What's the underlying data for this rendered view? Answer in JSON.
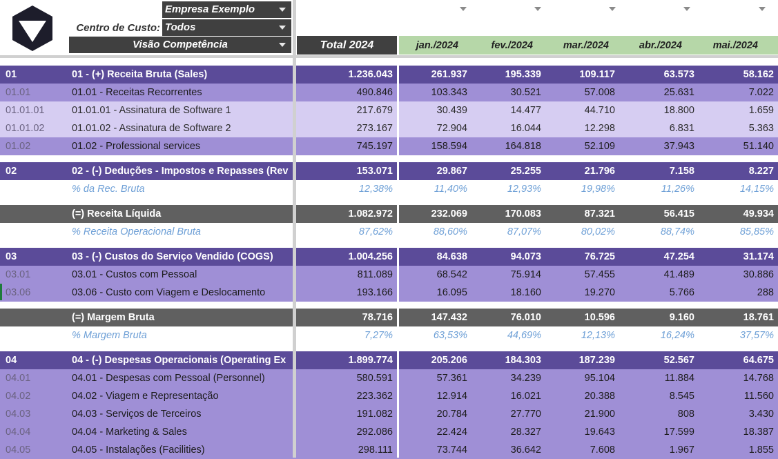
{
  "filters": {
    "empresa": "Empresa Exemplo",
    "centro_label": "Centro de Custo:",
    "centro_value": "Todos",
    "visao": "Visão Competência"
  },
  "header": {
    "total_label": "Total 2024",
    "months": [
      "jan./2024",
      "fev./2024",
      "mar./2024",
      "abr./2024",
      "mai./2024"
    ]
  },
  "rows": [
    {
      "type": "group",
      "code": "01",
      "desc": "01 - (+) Receita Bruta (Sales)",
      "total": "1.236.043",
      "months": [
        "261.937",
        "195.339",
        "109.117",
        "63.573",
        "58.162"
      ]
    },
    {
      "type": "sub",
      "code": "01.01",
      "desc": "01.01 - Receitas Recorrentes",
      "total": "490.846",
      "months": [
        "103.343",
        "30.521",
        "57.008",
        "25.631",
        "7.022"
      ]
    },
    {
      "type": "item",
      "code": "01.01.01",
      "desc": "01.01.01 - Assinatura de Software 1",
      "total": "217.679",
      "months": [
        "30.439",
        "14.477",
        "44.710",
        "18.800",
        "1.659"
      ]
    },
    {
      "type": "item",
      "code": "01.01.02",
      "desc": "01.01.02 - Assinatura de Software 2",
      "total": "273.167",
      "months": [
        "72.904",
        "16.044",
        "12.298",
        "6.831",
        "5.363"
      ]
    },
    {
      "type": "sub",
      "code": "01.02",
      "desc": "01.02 - Professional services",
      "total": "745.197",
      "months": [
        "158.594",
        "164.818",
        "52.109",
        "37.943",
        "51.140"
      ]
    },
    {
      "type": "group",
      "code": "02",
      "desc": "02 - (-) Deduções - Impostos e Repasses (Rev",
      "total": "153.071",
      "months": [
        "29.867",
        "25.255",
        "21.796",
        "7.158",
        "8.227"
      ]
    },
    {
      "type": "pct",
      "code": "",
      "desc": "% da Rec. Bruta",
      "total": "12,38%",
      "months": [
        "11,40%",
        "12,93%",
        "19,98%",
        "11,26%",
        "14,15%"
      ]
    },
    {
      "type": "result",
      "code": "",
      "desc": "(=) Receita Líquida",
      "total": "1.082.972",
      "months": [
        "232.069",
        "170.083",
        "87.321",
        "56.415",
        "49.934"
      ]
    },
    {
      "type": "pct",
      "code": "",
      "desc": "% Receita Operacional Bruta",
      "total": "87,62%",
      "months": [
        "88,60%",
        "87,07%",
        "80,02%",
        "88,74%",
        "85,85%"
      ]
    },
    {
      "type": "group",
      "code": "03",
      "desc": "03 - (-) Custos do Serviço Vendido (COGS)",
      "total": "1.004.256",
      "months": [
        "84.638",
        "94.073",
        "76.725",
        "47.254",
        "31.174"
      ]
    },
    {
      "type": "sub",
      "code": "03.01",
      "desc": "03.01 - Custos com Pessoal",
      "total": "811.089",
      "months": [
        "68.542",
        "75.914",
        "57.455",
        "41.489",
        "30.886"
      ]
    },
    {
      "type": "sub",
      "code": "03.06",
      "desc": "03.06 - Custo com Viagem e Deslocamento",
      "total": "193.166",
      "months": [
        "16.095",
        "18.160",
        "19.270",
        "5.766",
        "288"
      ]
    },
    {
      "type": "result",
      "code": "",
      "desc": "(=) Margem Bruta",
      "total": "78.716",
      "months": [
        "147.432",
        "76.010",
        "10.596",
        "9.160",
        "18.761"
      ]
    },
    {
      "type": "pct",
      "code": "",
      "desc": "% Margem Bruta",
      "total": "7,27%",
      "months": [
        "63,53%",
        "44,69%",
        "12,13%",
        "16,24%",
        "37,57%"
      ]
    },
    {
      "type": "group",
      "code": "04",
      "desc": "04 - (-) Despesas Operacionais (Operating Ex",
      "total": "1.899.774",
      "months": [
        "205.206",
        "184.303",
        "187.239",
        "52.567",
        "64.675"
      ]
    },
    {
      "type": "sub",
      "code": "04.01",
      "desc": "04.01 - Despesas com Pessoal (Personnel)",
      "total": "580.591",
      "months": [
        "57.361",
        "34.239",
        "95.104",
        "11.884",
        "14.768"
      ]
    },
    {
      "type": "sub",
      "code": "04.02",
      "desc": "04.02 - Viagem e Representação",
      "total": "223.362",
      "months": [
        "12.914",
        "16.021",
        "20.388",
        "8.545",
        "11.560"
      ]
    },
    {
      "type": "sub",
      "code": "04.03",
      "desc": "04.03 - Serviços de Terceiros",
      "total": "191.082",
      "months": [
        "20.784",
        "27.770",
        "21.900",
        "808",
        "3.430"
      ]
    },
    {
      "type": "sub",
      "code": "04.04",
      "desc": "04.04 - Marketing & Sales",
      "total": "292.086",
      "months": [
        "22.424",
        "28.327",
        "19.643",
        "17.599",
        "18.387"
      ]
    },
    {
      "type": "sub",
      "code": "04.05",
      "desc": "04.05 - Instalações (Facilities)",
      "total": "298.111",
      "months": [
        "73.744",
        "36.642",
        "7.608",
        "1.967",
        "1.855"
      ]
    }
  ]
}
